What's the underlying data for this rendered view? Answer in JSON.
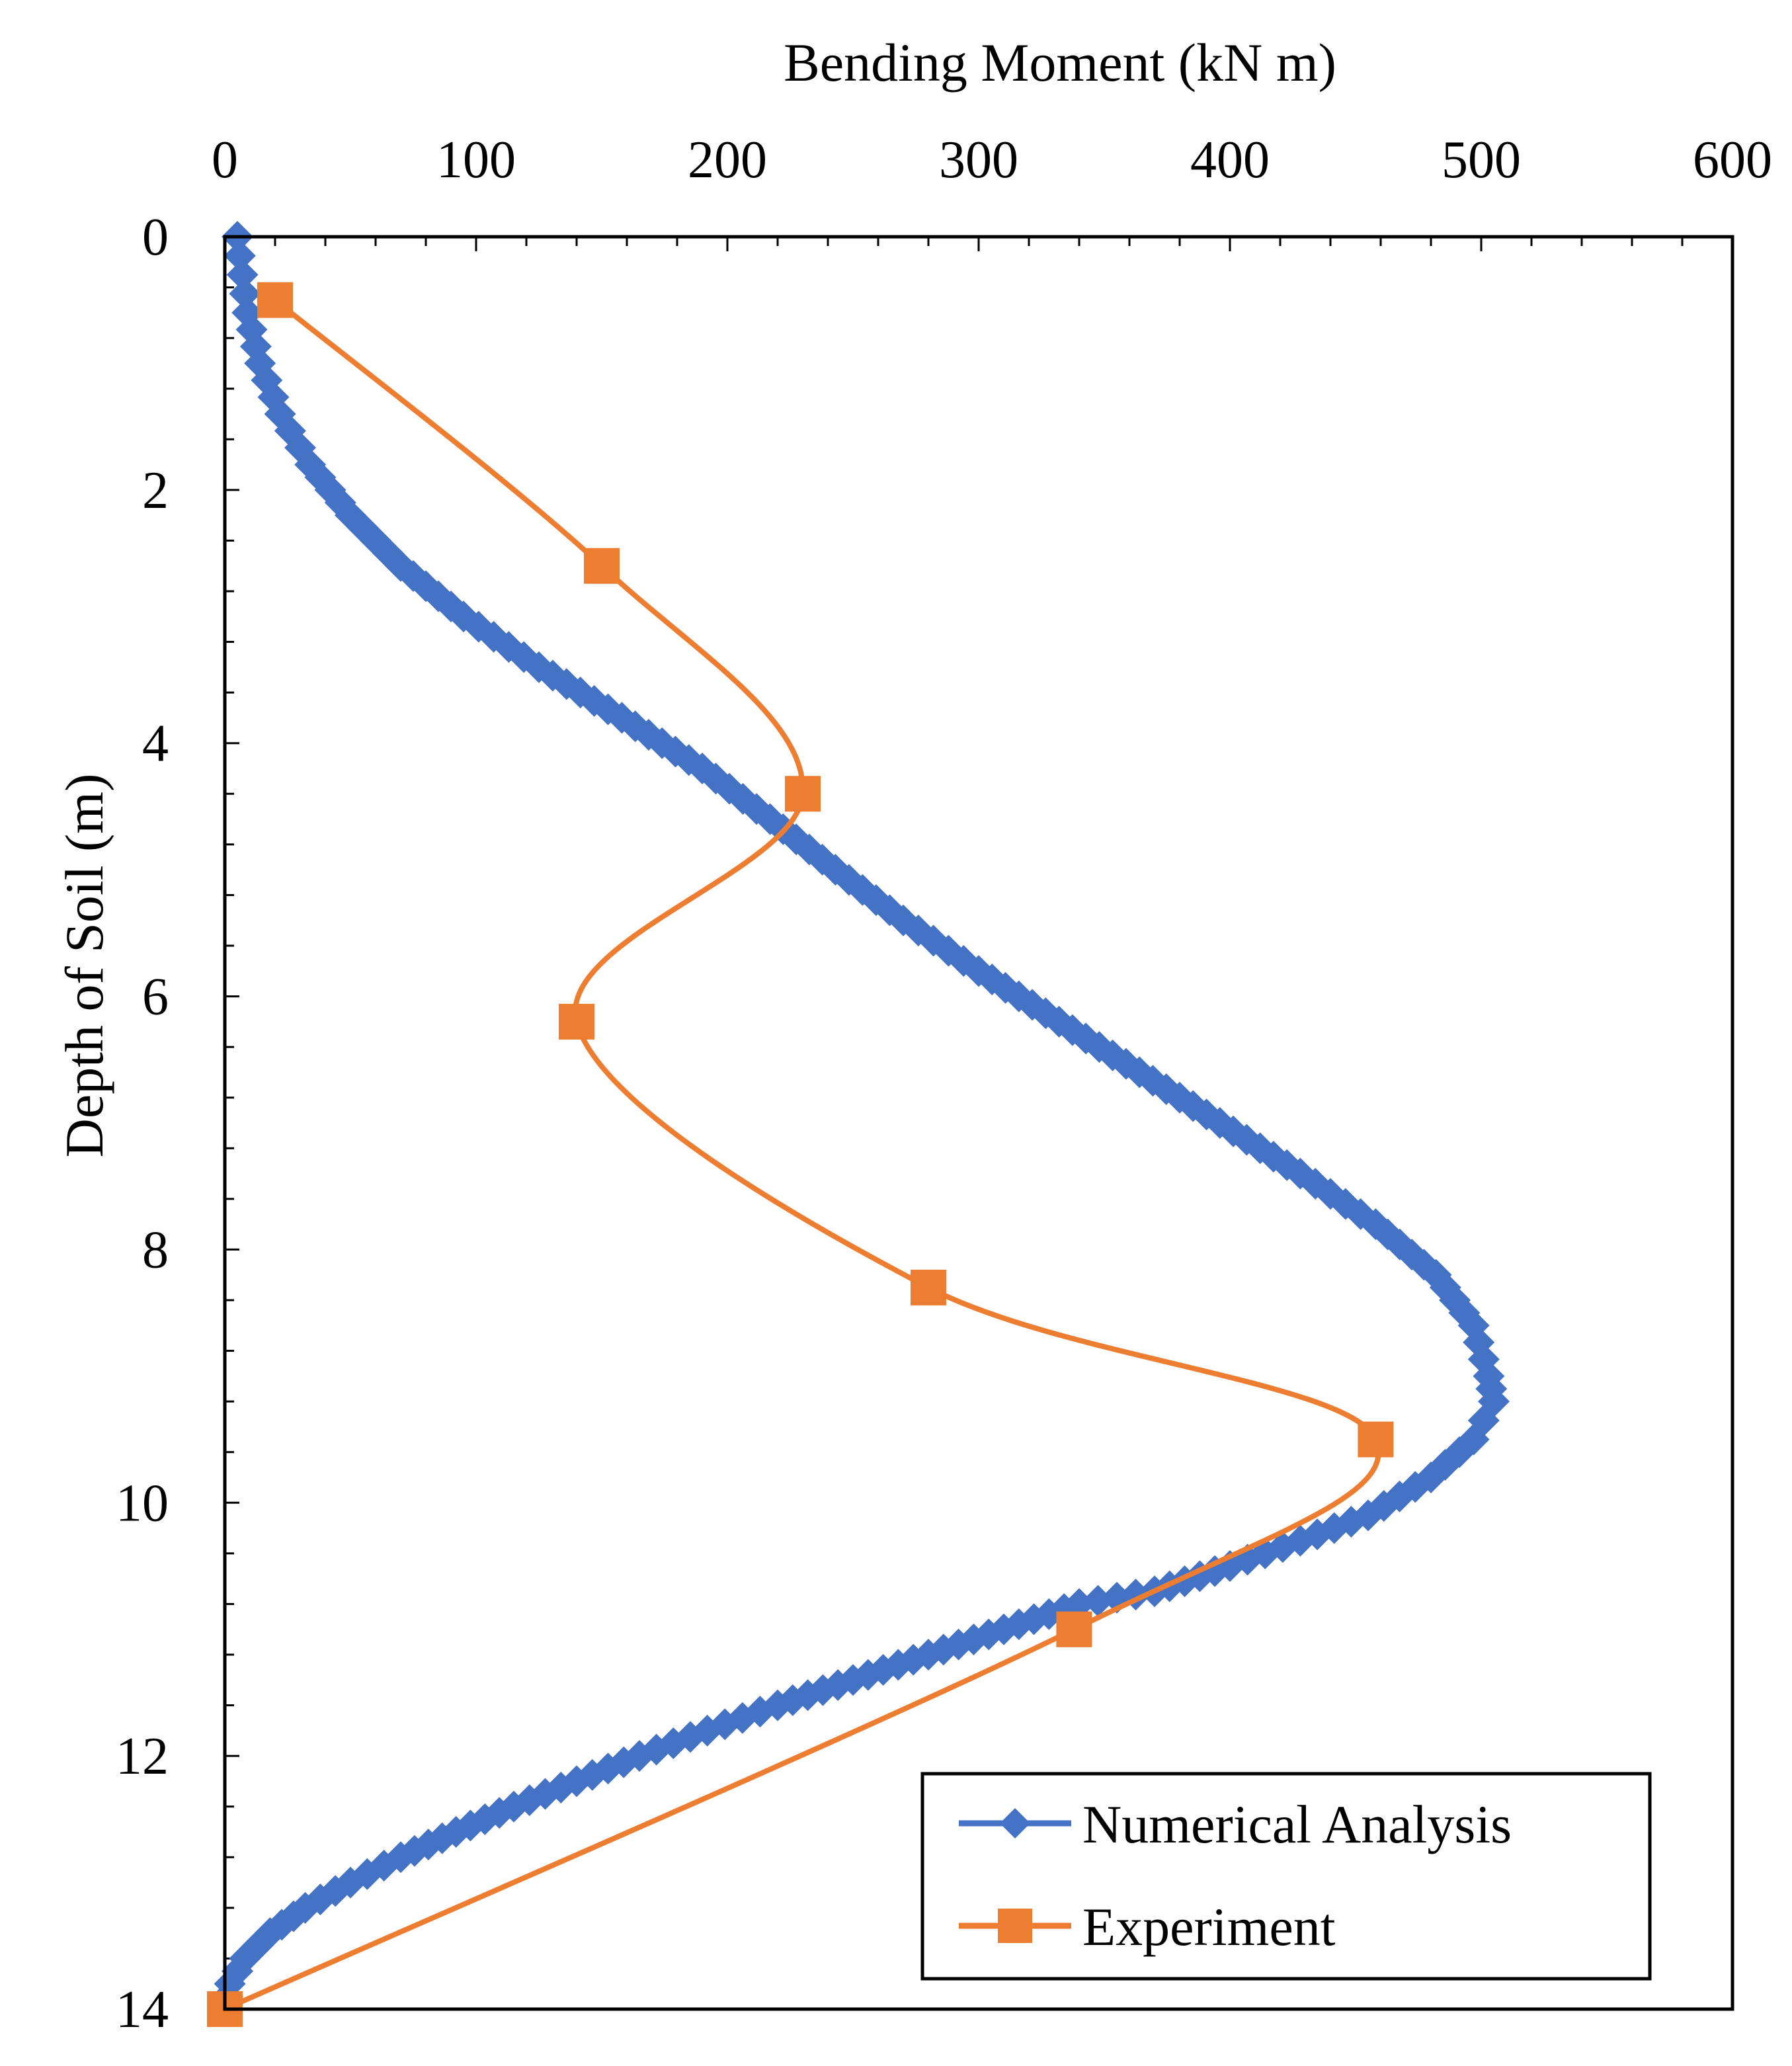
{
  "chart_data": {
    "type": "line",
    "title": "",
    "xlabel": "Bending Moment (kN m)",
    "ylabel": "Depth of Soil (m)",
    "xlim": [
      0,
      600
    ],
    "ylim": [
      0,
      14
    ],
    "x_axis_position": "top",
    "y_axis_inverted": true,
    "x_ticks": [
      "0",
      "100",
      "200",
      "300",
      "400",
      "500",
      "600"
    ],
    "y_ticks": [
      "0",
      "2",
      "4",
      "6",
      "8",
      "10",
      "12",
      "14"
    ],
    "grid": false,
    "legend": "bottom-right",
    "series": [
      {
        "name": "Numerical Analysis",
        "color": "#4472C4",
        "marker": "diamond",
        "smooth": false,
        "points": [
          [
            5,
            0.0
          ],
          [
            9,
            0.6
          ],
          [
            14,
            1.0
          ],
          [
            22,
            1.4
          ],
          [
            34,
            1.8
          ],
          [
            50,
            2.2
          ],
          [
            70,
            2.6
          ],
          [
            95,
            3.0
          ],
          [
            125,
            3.4
          ],
          [
            158,
            3.8
          ],
          [
            190,
            4.2
          ],
          [
            217,
            4.6
          ],
          [
            243,
            5.0
          ],
          [
            270,
            5.4
          ],
          [
            300,
            5.8
          ],
          [
            332,
            6.2
          ],
          [
            364,
            6.6
          ],
          [
            396,
            7.0
          ],
          [
            428,
            7.4
          ],
          [
            458,
            7.8
          ],
          [
            482,
            8.2
          ],
          [
            497,
            8.6
          ],
          [
            503,
            9.0
          ],
          [
            505,
            9.2
          ],
          [
            497,
            9.5
          ],
          [
            480,
            9.8
          ],
          [
            455,
            10.1
          ],
          [
            428,
            10.3
          ],
          [
            400,
            10.5
          ],
          [
            370,
            10.7
          ],
          [
            340,
            10.8
          ],
          [
            310,
            11.0
          ],
          [
            280,
            11.2
          ],
          [
            250,
            11.4
          ],
          [
            220,
            11.6
          ],
          [
            192,
            11.8
          ],
          [
            165,
            12.0
          ],
          [
            140,
            12.2
          ],
          [
            115,
            12.4
          ],
          [
            92,
            12.6
          ],
          [
            70,
            12.8
          ],
          [
            50,
            13.0
          ],
          [
            32,
            13.2
          ],
          [
            18,
            13.4
          ],
          [
            8,
            13.6
          ],
          [
            2,
            13.8
          ],
          [
            0,
            14.0
          ]
        ]
      },
      {
        "name": "Experiment",
        "color": "#ED7D31",
        "marker": "square",
        "smooth": true,
        "points": [
          [
            20,
            0.5
          ],
          [
            150,
            2.6
          ],
          [
            230,
            4.4
          ],
          [
            140,
            6.2
          ],
          [
            280,
            8.3
          ],
          [
            458,
            9.5
          ],
          [
            338,
            11.0
          ],
          [
            0,
            14.0
          ]
        ]
      }
    ]
  }
}
